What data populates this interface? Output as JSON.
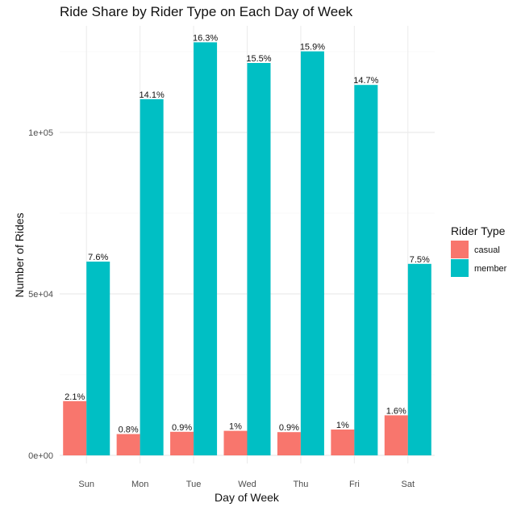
{
  "chart_data": {
    "type": "bar",
    "title": "Ride Share by Rider Type on Each Day of Week",
    "xlabel": "Day of Week",
    "ylabel": "Number of Rides",
    "categories": [
      "Sun",
      "Mon",
      "Tue",
      "Wed",
      "Thu",
      "Fri",
      "Sat"
    ],
    "ylim": [
      0,
      132000
    ],
    "y_ticks": [
      {
        "value": 0,
        "label": "0e+00"
      },
      {
        "value": 50000,
        "label": "5e+04"
      },
      {
        "value": 100000,
        "label": "1e+05"
      }
    ],
    "grid": true,
    "legend": {
      "title": "Rider Type",
      "position": "right"
    },
    "series": [
      {
        "name": "casual",
        "color": "#F8766D",
        "values": [
          16800,
          6600,
          7300,
          7600,
          7200,
          8000,
          12400
        ],
        "labels": [
          "2.1%",
          "0.8%",
          "0.9%",
          "1%",
          "0.9%",
          "1%",
          "1.6%"
        ]
      },
      {
        "name": "member",
        "color": "#00BFC4",
        "values": [
          60000,
          110300,
          127900,
          121500,
          125100,
          114700,
          59300
        ],
        "labels": [
          "7.6%",
          "14.1%",
          "16.3%",
          "15.5%",
          "15.9%",
          "14.7%",
          "7.5%"
        ]
      }
    ]
  }
}
